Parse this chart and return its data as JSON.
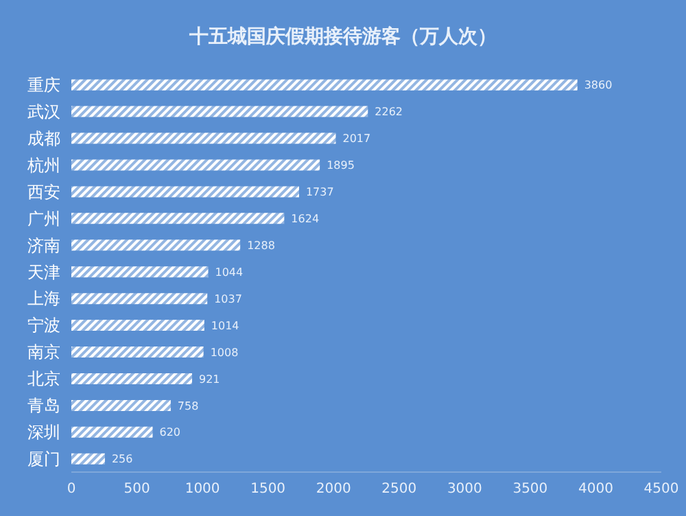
{
  "chart_data": {
    "type": "bar",
    "orientation": "horizontal",
    "title": "十五城国庆假期接待游客（万人次）",
    "categories": [
      "重庆",
      "武汉",
      "成都",
      "杭州",
      "西安",
      "广州",
      "济南",
      "天津",
      "上海",
      "宁波",
      "南京",
      "北京",
      "青岛",
      "深圳",
      "厦门"
    ],
    "values": [
      3860,
      2262,
      2017,
      1895,
      1737,
      1624,
      1288,
      1044,
      1037,
      1014,
      1008,
      921,
      758,
      620,
      256
    ],
    "color": "#ffffff",
    "xlim": [
      0,
      4500
    ],
    "xticks": [
      0,
      500,
      1000,
      1500,
      2000,
      2500,
      3000,
      3500,
      4000,
      4500
    ],
    "data_labels": true
  }
}
